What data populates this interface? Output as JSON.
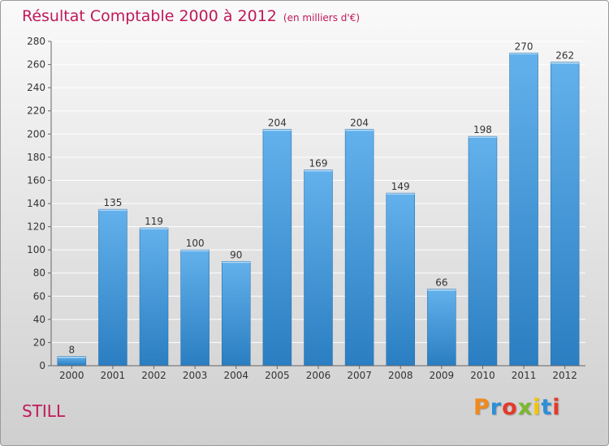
{
  "title": {
    "main": "Résultat Comptable 2000 à 2012",
    "unit": "(en milliers d'€)"
  },
  "location": "STILL",
  "brand": {
    "text": "Proxiti",
    "colors": [
      "#f08a1c",
      "#2b8fd6",
      "#e33a2a",
      "#7cb82f",
      "#f5c400",
      "#2b8fd6",
      "#e33a2a"
    ]
  },
  "colors": {
    "bar_top": "#63b1ec",
    "bar_bottom": "#2a7ec1",
    "grid": "#ffffff",
    "title": "#c0185a"
  },
  "chart_data": {
    "type": "bar",
    "title": "Résultat Comptable 2000 à 2012",
    "xlabel": "",
    "ylabel": "",
    "ylim": [
      0,
      280
    ],
    "yticks": [
      0,
      20,
      40,
      60,
      80,
      100,
      120,
      140,
      160,
      180,
      200,
      220,
      240,
      260,
      280
    ],
    "grid": true,
    "categories": [
      "2000",
      "2001",
      "2002",
      "2003",
      "2004",
      "2005",
      "2006",
      "2007",
      "2008",
      "2009",
      "2010",
      "2011",
      "2012"
    ],
    "values": [
      8,
      135,
      119,
      100,
      90,
      204,
      169,
      204,
      149,
      66,
      198,
      270,
      262
    ]
  }
}
